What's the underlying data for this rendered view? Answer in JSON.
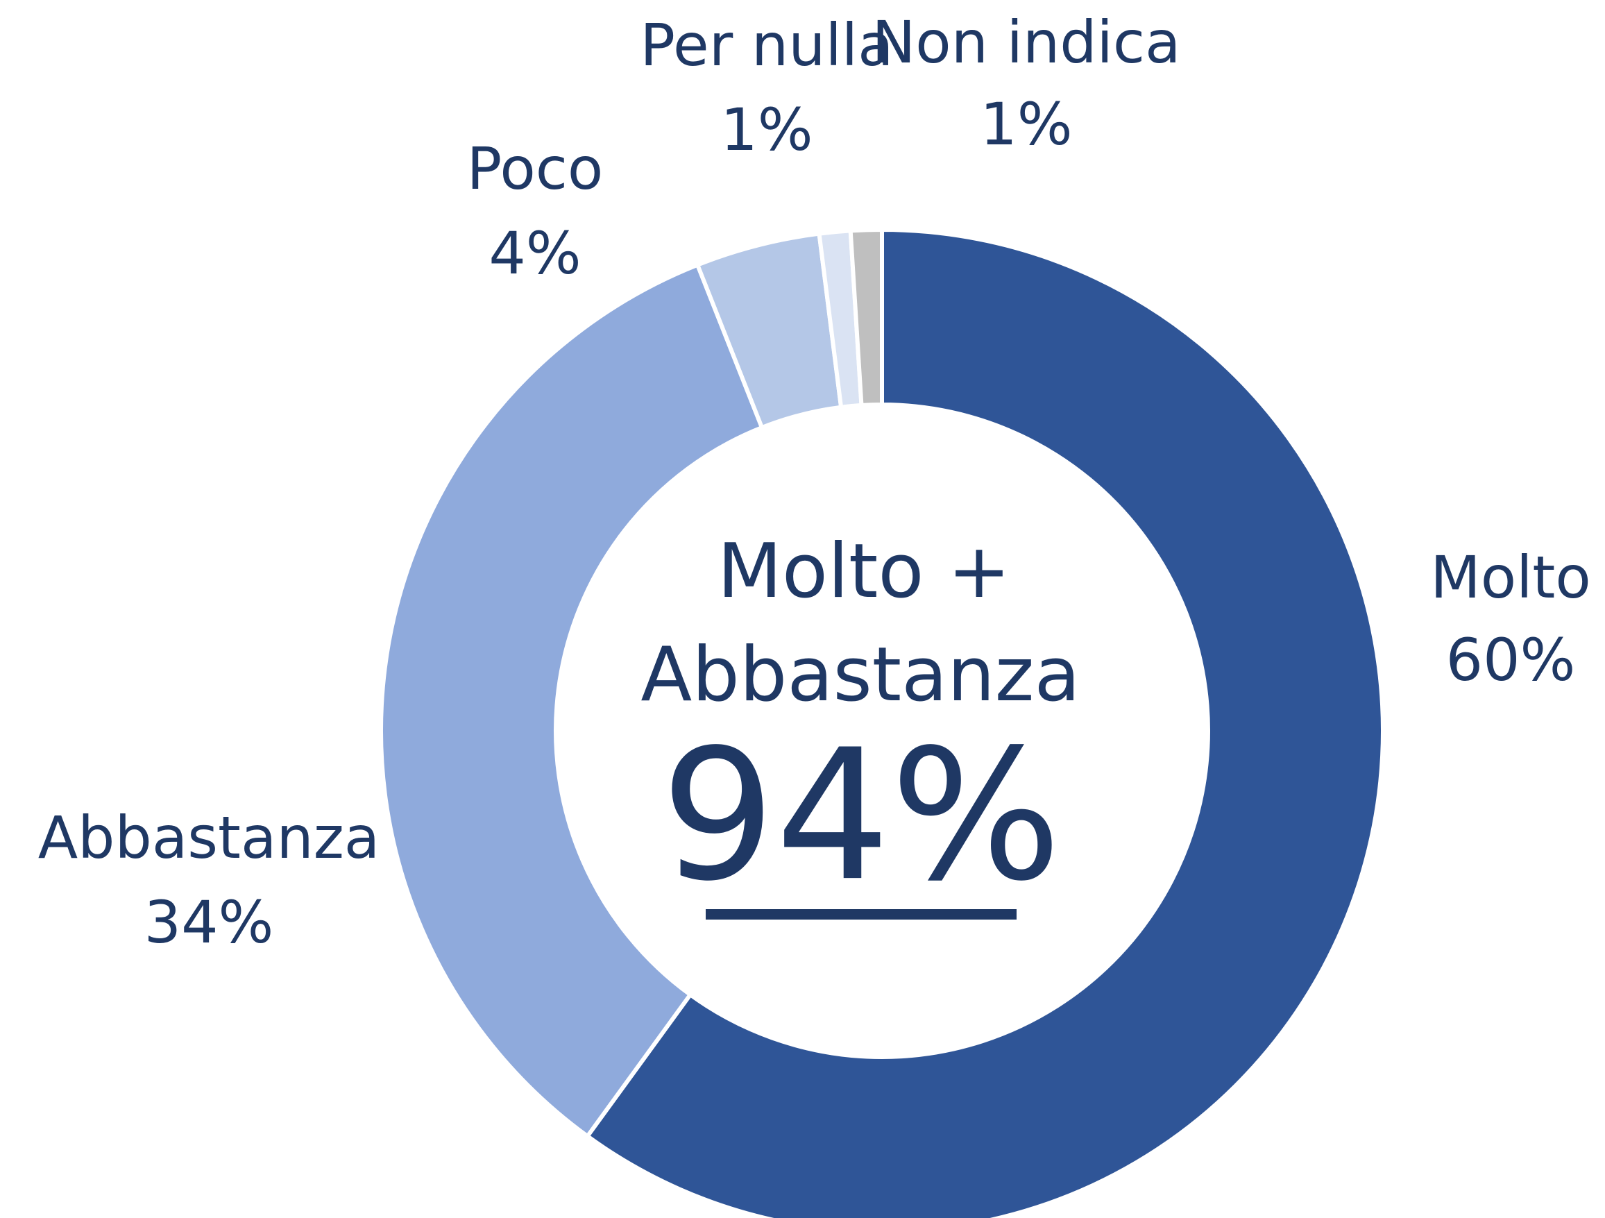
{
  "chart_data": {
    "type": "donut",
    "categories": [
      "Molto",
      "Abbastanza",
      "Poco",
      "Per nulla",
      "Non indica"
    ],
    "values": [
      60,
      34,
      4,
      1,
      1
    ],
    "value_labels": [
      "60%",
      "34%",
      "4%",
      "1%",
      "1%"
    ],
    "colors": [
      "#2f5597",
      "#8faadc",
      "#b4c7e7",
      "#dae3f3",
      "#bfbfbf"
    ],
    "center_text": [
      "Molto +",
      "Abbastanza",
      "94%"
    ]
  }
}
